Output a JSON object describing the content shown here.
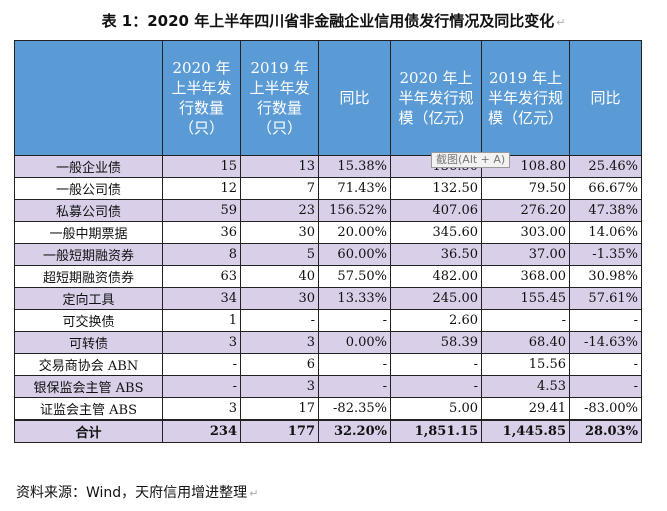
{
  "title": "表 1：2020 年上半年四川省非金融企业信用债发行情况及同比变化",
  "headers": [
    "",
    "2020 年上半年发行数量（只）",
    "2019 年上半年发行数量（只）",
    "同比",
    "2020 年上半年发行规模（亿元）",
    "2019 年上半年发行规模（亿元）",
    "同比"
  ],
  "rows": [
    [
      "一般企业债",
      "15",
      "13",
      "15.38%",
      "136.50",
      "108.80",
      "25.46%"
    ],
    [
      "一般公司债",
      "12",
      "7",
      "71.43%",
      "132.50",
      "79.50",
      "66.67%"
    ],
    [
      "私募公司债",
      "59",
      "23",
      "156.52%",
      "407.06",
      "276.20",
      "47.38%"
    ],
    [
      "一般中期票据",
      "36",
      "30",
      "20.00%",
      "345.60",
      "303.00",
      "14.06%"
    ],
    [
      "一般短期融资券",
      "8",
      "5",
      "60.00%",
      "36.50",
      "37.00",
      "-1.35%"
    ],
    [
      "超短期融资债券",
      "63",
      "40",
      "57.50%",
      "482.00",
      "368.00",
      "30.98%"
    ],
    [
      "定向工具",
      "34",
      "30",
      "13.33%",
      "245.00",
      "155.45",
      "57.61%"
    ],
    [
      "可交换债",
      "1",
      "-",
      "-",
      "2.60",
      "-",
      "-"
    ],
    [
      "可转债",
      "3",
      "3",
      "0.00%",
      "58.39",
      "68.40",
      "-14.63%"
    ],
    [
      "交易商协会 ABN",
      "-",
      "6",
      "-",
      "-",
      "15.56",
      "-"
    ],
    [
      "银保监会主管 ABS",
      "-",
      "3",
      "-",
      "-",
      "4.53",
      "-"
    ],
    [
      "证监会主管 ABS",
      "3",
      "17",
      "-82.35%",
      "5.00",
      "29.41",
      "-83.00%"
    ]
  ],
  "total": [
    "合计",
    "234",
    "177",
    "32.20%",
    "1,851.15",
    "1,445.85",
    "28.03%"
  ],
  "source": "资料来源：Wind，天府信用增进整理",
  "tooltip": "截图(Alt + A)",
  "colors": {
    "header_bg": "#5b9bd5",
    "stripe_bg": "#d9cfe8"
  }
}
